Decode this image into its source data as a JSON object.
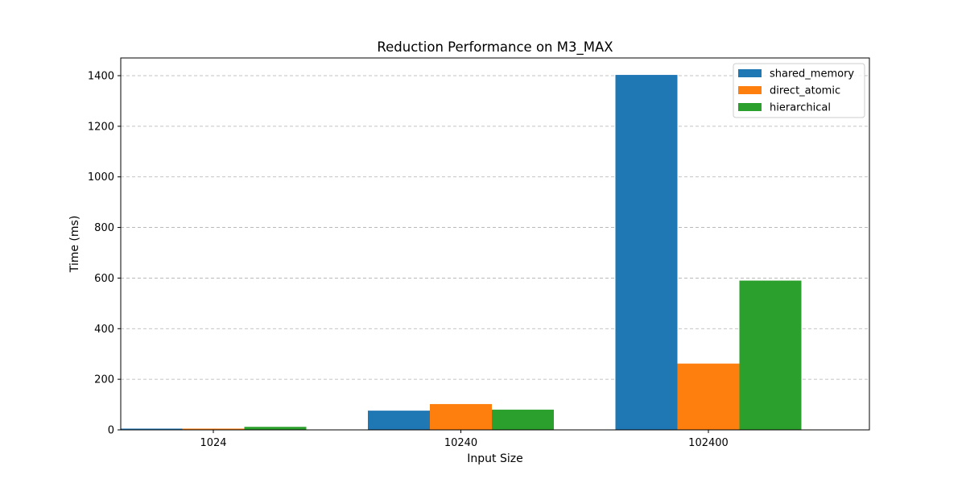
{
  "chart_data": {
    "type": "bar",
    "title": "Reduction Performance on M3_MAX",
    "xlabel": "Input Size",
    "ylabel": "Time (ms)",
    "categories": [
      "1024",
      "10240",
      "102400"
    ],
    "series": [
      {
        "name": "shared_memory",
        "color": "#1f77b4",
        "values": [
          5,
          76,
          1403
        ]
      },
      {
        "name": "direct_atomic",
        "color": "#ff7f0e",
        "values": [
          5,
          102,
          262
        ]
      },
      {
        "name": "hierarchical",
        "color": "#2ca02c",
        "values": [
          12,
          80,
          590
        ]
      }
    ],
    "ylim": [
      0,
      1470
    ],
    "yticks": [
      0,
      200,
      400,
      600,
      800,
      1000,
      1200,
      1400
    ],
    "grid": "y-dashed",
    "legend_position": "top-right"
  }
}
